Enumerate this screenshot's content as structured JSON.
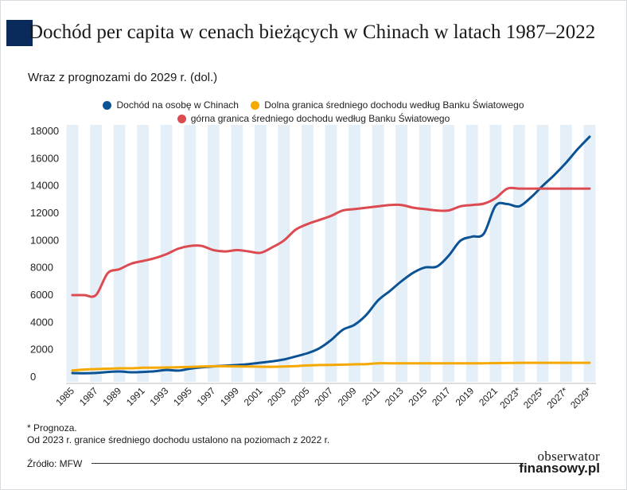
{
  "header": {
    "title": "Dochód per capita w cenach bieżących w Chinach w latach 1987–2022",
    "subtitle": "Wraz z prognozami do 2029 r. (dol.)"
  },
  "legend": {
    "items": [
      {
        "label": "Dochód na osobę w Chinach",
        "color": "#0b5394"
      },
      {
        "label": "Dolna granica średniego dochodu według Banku Światowego",
        "color": "#f5a800"
      },
      {
        "label": "górna granica średniego dochodu według Banku Światowego",
        "color": "#dc4b51"
      }
    ]
  },
  "notes": {
    "prognoza": "* Prognoza.",
    "granice": "Od 2023 r. granice średniego dochodu ustalono na poziomach z 2022 r.",
    "source": "Źródło: MFW"
  },
  "logo": {
    "line1": "obserwator",
    "line2": "finansowy.pl"
  },
  "chart_data": {
    "type": "line",
    "x": [
      1985,
      1986,
      1987,
      1988,
      1989,
      1990,
      1991,
      1992,
      1993,
      1994,
      1995,
      1996,
      1997,
      1998,
      1999,
      2000,
      2001,
      2002,
      2003,
      2004,
      2005,
      2006,
      2007,
      2008,
      2009,
      2010,
      2011,
      2012,
      2013,
      2014,
      2015,
      2016,
      2017,
      2018,
      2019,
      2020,
      2021,
      2022,
      2023,
      2024,
      2025,
      2026,
      2027,
      2028,
      2029
    ],
    "x_tick_labels": [
      "1985",
      "1987",
      "1989",
      "1991",
      "1993",
      "1995",
      "1997",
      "1999",
      "2001",
      "2003",
      "2005",
      "2007",
      "2009",
      "2011",
      "2013",
      "2015",
      "2017",
      "2019",
      "2021",
      "2023*",
      "2025*",
      "2027*",
      "2029*"
    ],
    "ylim": [
      0,
      18000
    ],
    "y_ticks": [
      0,
      2000,
      4000,
      6000,
      8000,
      10000,
      12000,
      14000,
      16000,
      18000
    ],
    "grid": "alternating vertical bands",
    "series": [
      {
        "name": "Dochód na osobę w Chinach",
        "color": "#0b5394",
        "values": [
          290,
          280,
          300,
          370,
          410,
          350,
          370,
          420,
          520,
          470,
          610,
          710,
          780,
          830,
          880,
          950,
          1050,
          1150,
          1290,
          1510,
          1750,
          2100,
          2700,
          3460,
          3830,
          4550,
          5610,
          6300,
          7020,
          7640,
          8030,
          8090,
          8880,
          9980,
          10280,
          10500,
          12540,
          12670,
          12500,
          13150,
          14000,
          14800,
          15700,
          16700,
          17600
        ]
      },
      {
        "name": "Dolna granica średniego dochodu według Banku Światowego",
        "color": "#f5a800",
        "values": [
          480,
          550,
          580,
          610,
          640,
          640,
          680,
          690,
          700,
          720,
          740,
          770,
          790,
          790,
          780,
          770,
          760,
          750,
          770,
          800,
          850,
          880,
          890,
          910,
          930,
          950,
          1010,
          1010,
          1010,
          1010,
          1010,
          1010,
          1010,
          1010,
          1010,
          1010,
          1020,
          1030,
          1040,
          1040,
          1040,
          1040,
          1040,
          1040,
          1040
        ]
      },
      {
        "name": "górna granica średniego dochodu według Banku Światowego",
        "color": "#dc4b51",
        "values": [
          6000,
          6000,
          6000,
          7600,
          7900,
          8300,
          8500,
          8700,
          9000,
          9400,
          9600,
          9600,
          9300,
          9200,
          9300,
          9200,
          9100,
          9500,
          10000,
          10800,
          11200,
          11500,
          11800,
          12200,
          12300,
          12400,
          12500,
          12600,
          12600,
          12400,
          12300,
          12200,
          12200,
          12500,
          12600,
          12700,
          13100,
          13800,
          13800,
          13800,
          13800,
          13800,
          13800,
          13800,
          13800
        ]
      }
    ]
  }
}
